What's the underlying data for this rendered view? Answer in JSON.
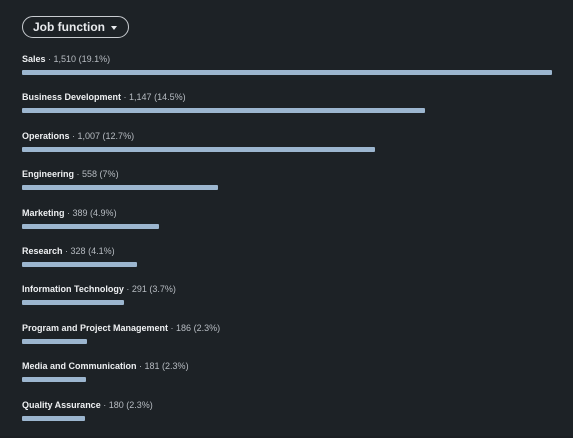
{
  "filter": {
    "label": "Job function",
    "icon": "caret-down-icon"
  },
  "colors": {
    "background": "#1d2226",
    "bar": "#9cb6cf",
    "text_primary": "#eef0f2",
    "text_secondary": "#b7bcc2"
  },
  "chart_data": {
    "type": "bar",
    "categories": [
      "Sales",
      "Business Development",
      "Operations",
      "Engineering",
      "Marketing",
      "Research",
      "Information Technology",
      "Program and Project Management",
      "Media and Communication",
      "Quality Assurance"
    ],
    "values": [
      1510,
      1147,
      1007,
      558,
      389,
      328,
      291,
      186,
      181,
      180
    ],
    "value_labels": [
      "1,510",
      "1,147",
      "1,007",
      "558",
      "389",
      "328",
      "291",
      "186",
      "181",
      "180"
    ],
    "percent_labels": [
      "19.1%",
      "14.5%",
      "12.7%",
      "7%",
      "4.9%",
      "4.1%",
      "3.7%",
      "2.3%",
      "2.3%",
      "2.3%"
    ],
    "title": "",
    "xlabel": "",
    "ylabel": "",
    "xlim": [
      0,
      1510
    ]
  }
}
